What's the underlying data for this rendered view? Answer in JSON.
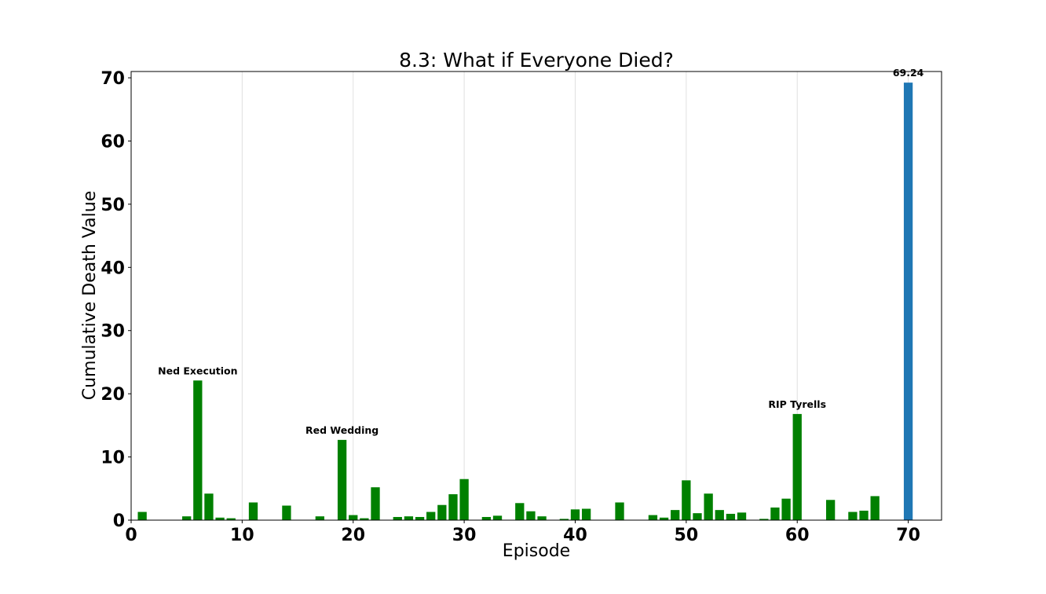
{
  "chart_data": {
    "type": "bar",
    "title": "8.3: What if Everyone Died?",
    "xlabel": "Episode",
    "ylabel": "Cumulative Death Value",
    "xlim": [
      0,
      73
    ],
    "ylim": [
      0,
      71
    ],
    "xticks": [
      0,
      10,
      20,
      30,
      40,
      50,
      60,
      70
    ],
    "yticks": [
      0,
      10,
      20,
      30,
      40,
      50,
      60,
      70
    ],
    "grid": "x-only",
    "series": [
      {
        "color": "#008000",
        "x": [
          1,
          5,
          6,
          7,
          8,
          9,
          11,
          14,
          17,
          19,
          20,
          21,
          22,
          24,
          25,
          26,
          27,
          28,
          29,
          30,
          32,
          33,
          35,
          36,
          37,
          39,
          40,
          41,
          44,
          47,
          48,
          49,
          50,
          51,
          52,
          53,
          54,
          55,
          57,
          58,
          59,
          60,
          63,
          65,
          66,
          67
        ],
        "values": [
          1.3,
          0.6,
          22.1,
          4.2,
          0.4,
          0.3,
          2.8,
          2.3,
          0.6,
          12.7,
          0.8,
          0.3,
          5.2,
          0.5,
          0.6,
          0.5,
          1.3,
          2.4,
          4.1,
          6.5,
          0.5,
          0.7,
          2.7,
          1.4,
          0.6,
          0.2,
          1.7,
          1.8,
          2.8,
          0.8,
          0.4,
          1.6,
          6.3,
          1.1,
          4.2,
          1.6,
          1.0,
          1.2,
          0.2,
          2.0,
          3.4,
          16.8,
          3.2,
          1.3,
          1.5,
          3.8
        ]
      },
      {
        "color": "#1f77b4",
        "x": [
          70
        ],
        "values": [
          69.24
        ]
      }
    ],
    "annotations": [
      {
        "text": "Ned Execution",
        "x": 6,
        "y": 22.1
      },
      {
        "text": "Red Wedding",
        "x": 19,
        "y": 12.7
      },
      {
        "text": "RIP Tyrells",
        "x": 60,
        "y": 16.8
      },
      {
        "text": "69.24",
        "x": 70,
        "y": 69.24
      }
    ]
  }
}
